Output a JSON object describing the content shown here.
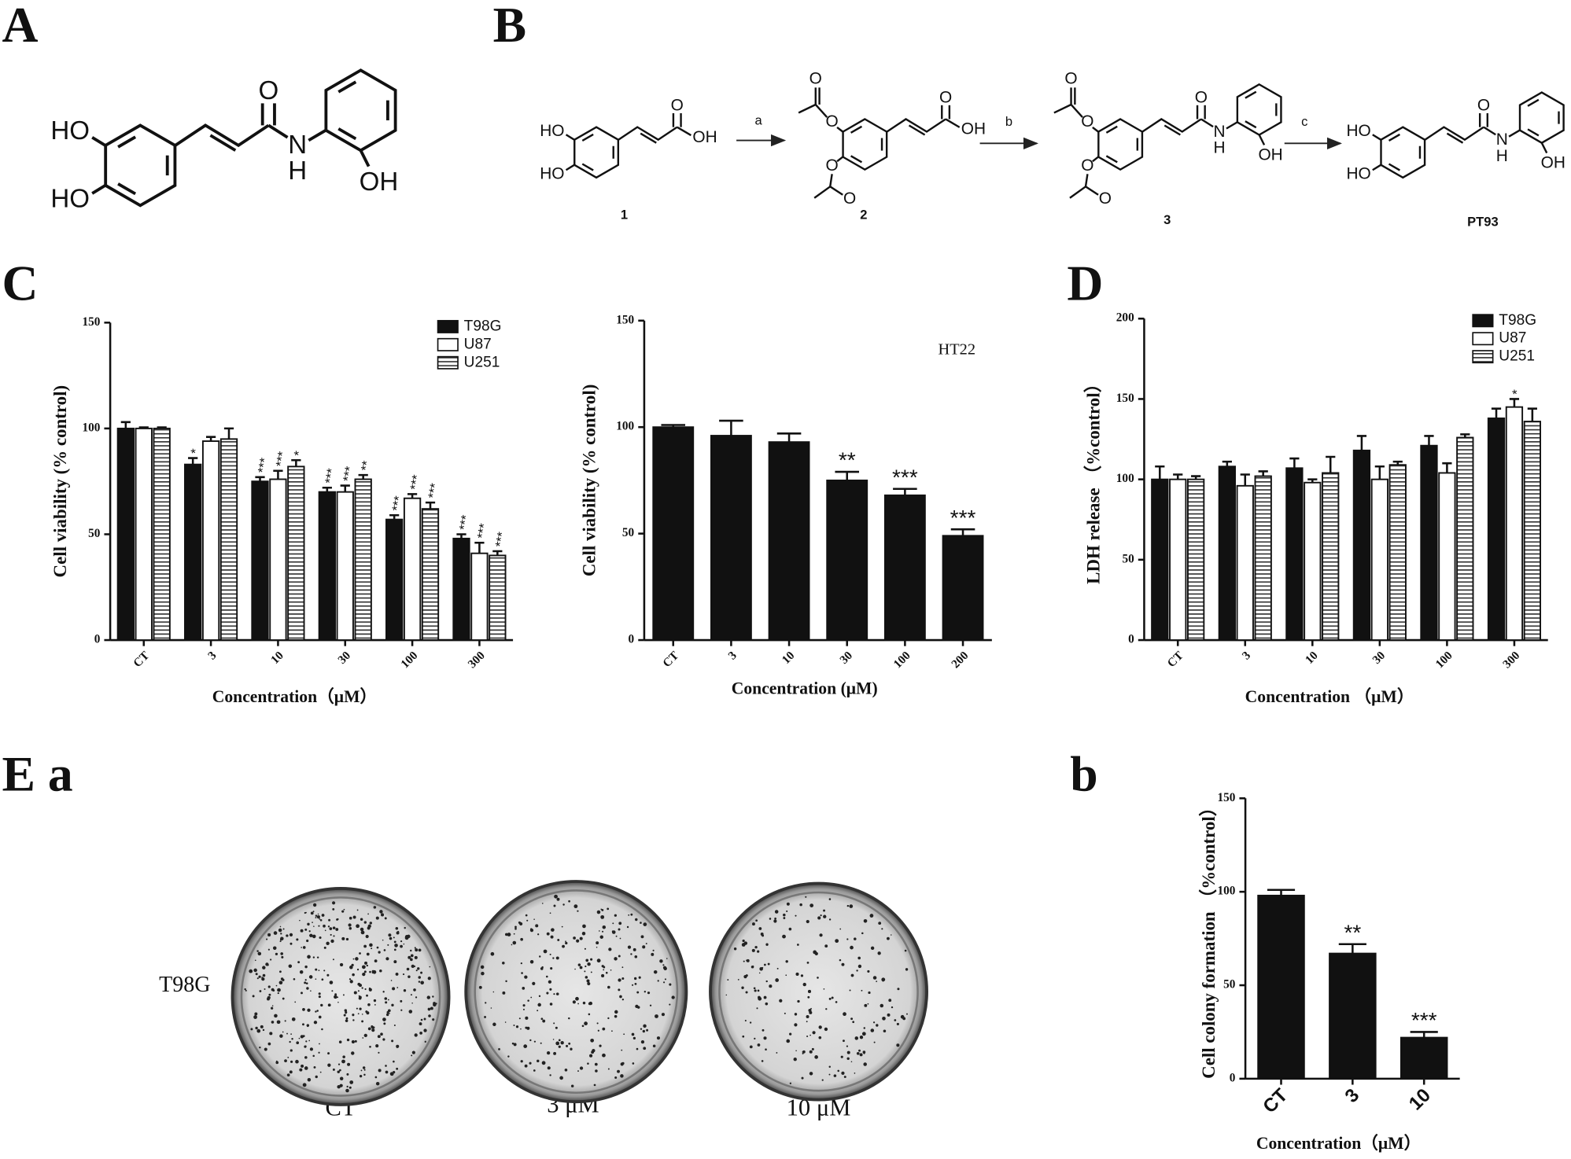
{
  "panel_labels": [
    "A",
    "B",
    "C",
    "D",
    "E a",
    "b"
  ],
  "structures": {
    "A": {
      "atoms": [
        "HO",
        "HO",
        "O",
        "N",
        "H",
        "OH"
      ]
    },
    "B": {
      "compounds": [
        {
          "name": "1",
          "atoms": [
            "HO",
            "HO",
            "O",
            "OH"
          ]
        },
        {
          "name": "2",
          "atoms": [
            "O",
            "O",
            "O",
            "O",
            "O",
            "OH"
          ]
        },
        {
          "name": "3",
          "atoms": [
            "O",
            "O",
            "O",
            "O",
            "O",
            "N",
            "H",
            "OH"
          ]
        },
        {
          "name": "PT93",
          "atoms": [
            "HO",
            "HO",
            "O",
            "N",
            "H",
            "OH"
          ]
        }
      ],
      "steps": [
        "a",
        "b",
        "c"
      ]
    }
  },
  "chart_data": [
    {
      "type": "bar",
      "ylabel": "Cell viability (% control)",
      "xlabel": "Concentration（μM）",
      "categories": [
        "CT",
        "3",
        "10",
        "30",
        "100",
        "300"
      ],
      "ylim": [
        0,
        150
      ],
      "yticks": [
        0,
        50,
        100,
        150
      ],
      "legend": "upper right",
      "series": [
        {
          "name": "T98G",
          "color": "#111111",
          "values": [
            100,
            83,
            75,
            70,
            57,
            48
          ],
          "errors": [
            3,
            3,
            2,
            2,
            2,
            2
          ],
          "stars": [
            null,
            "*",
            "***",
            "***",
            "***",
            "***"
          ]
        },
        {
          "name": "U87",
          "color": "#ffffff",
          "values": [
            100,
            94,
            76,
            70,
            67,
            41
          ],
          "errors": [
            0.5,
            2,
            4,
            3,
            2,
            5
          ],
          "stars": [
            null,
            null,
            "***",
            "***",
            "***",
            "***"
          ]
        },
        {
          "name": "U251",
          "color": "#ffffff",
          "hatch": true,
          "values": [
            100,
            95,
            82,
            76,
            62,
            40
          ],
          "errors": [
            0.5,
            5,
            3,
            2,
            3,
            2
          ],
          "stars": [
            null,
            null,
            "*",
            "**",
            "***",
            "***"
          ]
        }
      ]
    },
    {
      "type": "bar",
      "title": "HT22",
      "ylabel": "Cell viability (% control)",
      "xlabel": "Concentration (μM)",
      "categories": [
        "CT",
        "3",
        "10",
        "30",
        "100",
        "200"
      ],
      "ylim": [
        0,
        150
      ],
      "yticks": [
        0,
        50,
        100,
        150
      ],
      "color": "#111111",
      "values": [
        100,
        96,
        93,
        75,
        68,
        49
      ],
      "errors": [
        1,
        7,
        4,
        4,
        3,
        3
      ],
      "stars": [
        null,
        null,
        null,
        "**",
        "***",
        "***"
      ]
    },
    {
      "type": "bar",
      "ylabel": "LDH release （%control）",
      "xlabel": "Concentration （μM）",
      "categories": [
        "CT",
        "3",
        "10",
        "30",
        "100",
        "300"
      ],
      "ylim": [
        0,
        200
      ],
      "yticks": [
        0,
        50,
        100,
        150,
        200
      ],
      "legend": "upper right",
      "series": [
        {
          "name": "T98G",
          "color": "#111111",
          "values": [
            100,
            108,
            107,
            118,
            121,
            138
          ],
          "errors": [
            8,
            3,
            6,
            9,
            6,
            6
          ],
          "stars": [
            null,
            null,
            null,
            null,
            null,
            null
          ]
        },
        {
          "name": "U87",
          "color": "#ffffff",
          "values": [
            100,
            96,
            98,
            100,
            104,
            145
          ],
          "errors": [
            3,
            7,
            2,
            8,
            6,
            5
          ],
          "stars": [
            null,
            null,
            null,
            null,
            null,
            "*"
          ]
        },
        {
          "name": "U251",
          "color": "#ffffff",
          "hatch": true,
          "values": [
            100,
            102,
            104,
            109,
            126,
            136
          ],
          "errors": [
            2,
            3,
            10,
            2,
            2,
            8
          ],
          "stars": [
            null,
            null,
            null,
            null,
            null,
            null
          ]
        }
      ]
    },
    {
      "type": "bar",
      "ylabel": "Cell colony formation （%control）",
      "xlabel": "Concentration（μM）",
      "categories": [
        "CT",
        "3",
        "10"
      ],
      "ylim": [
        0,
        150
      ],
      "yticks": [
        0,
        50,
        100,
        150
      ],
      "color": "#111111",
      "values": [
        98,
        67,
        22
      ],
      "errors": [
        3,
        5,
        3
      ],
      "stars": [
        null,
        "**",
        "***"
      ]
    }
  ],
  "colony": {
    "row_label": "T98G",
    "labels": [
      "CT",
      "3 μM",
      "10 μM"
    ]
  }
}
